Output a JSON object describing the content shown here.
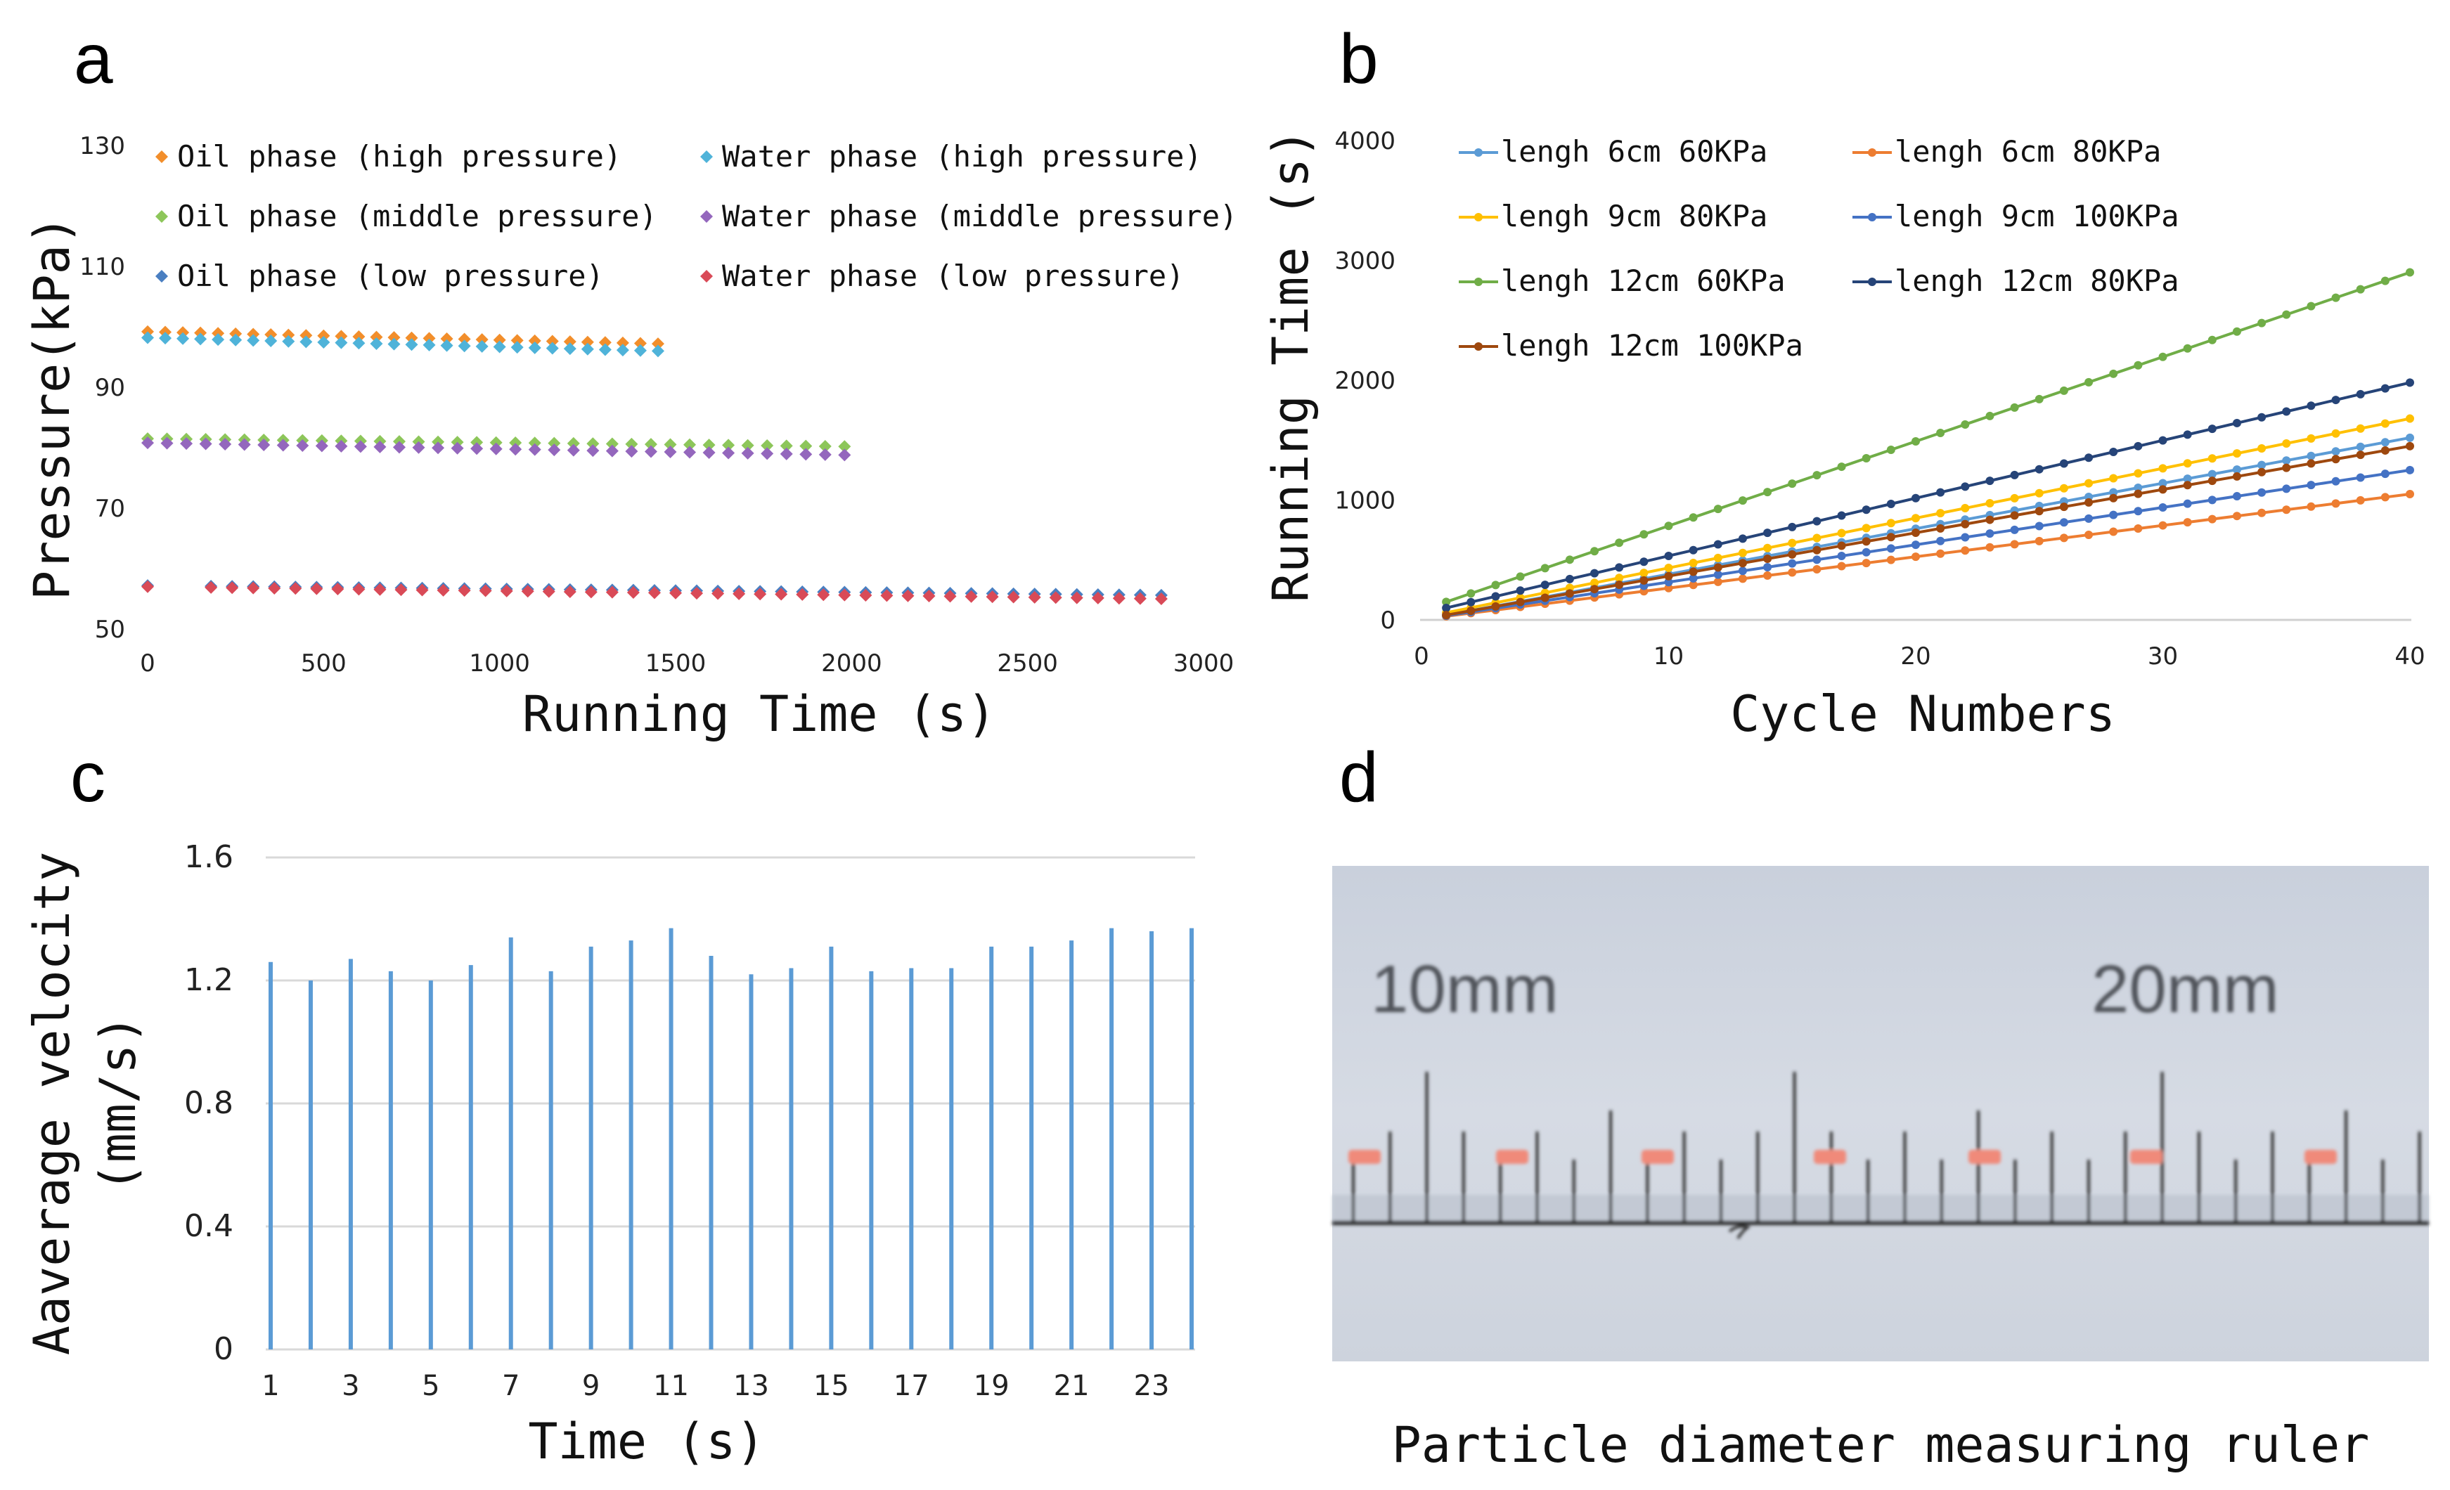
{
  "colors": {
    "oil_high": "#F28E2B",
    "water_high": "#4FB3D9",
    "oil_middle": "#8DC65A",
    "water_middle": "#9467BD",
    "oil_low": "#4A7FC1",
    "water_low": "#D94A57",
    "b_6cm_60": "#5B9BD5",
    "b_6cm_80": "#ED7D31",
    "b_9cm_80": "#FFC000",
    "b_9cm_100": "#4472C4",
    "b_12cm_60": "#70AD47",
    "b_12cm_80": "#264478",
    "b_12cm_100": "#9E480E",
    "bars": "#5B9BD5"
  },
  "chart_data": [
    {
      "panel": "a",
      "type": "scatter",
      "xlabel": "Running Time (s)",
      "ylabel": "Pressure(kPa)",
      "xlim": [
        0,
        3000
      ],
      "ylim": [
        50,
        130
      ],
      "xticks": [
        0,
        500,
        1000,
        1500,
        2000,
        2500,
        3000
      ],
      "yticks": [
        50,
        70,
        90,
        110,
        130
      ],
      "legend_position": "top",
      "series": [
        {
          "name": "Oil phase (high pressure)",
          "color_key": "oil_high",
          "x_start": 0,
          "x_end": 1450,
          "step": 50,
          "y_start": 99.2,
          "y_end": 97.2
        },
        {
          "name": "Water phase (high pressure)",
          "color_key": "water_high",
          "x_start": 0,
          "x_end": 1450,
          "step": 50,
          "y_start": 98.2,
          "y_end": 96.0
        },
        {
          "name": "Oil phase (middle pressure)",
          "color_key": "oil_middle",
          "x_start": 0,
          "x_end": 1980,
          "step": 55,
          "y_start": 81.5,
          "y_end": 80.2
        },
        {
          "name": "Water phase (middle pressure)",
          "color_key": "water_middle",
          "x_start": 0,
          "x_end": 1980,
          "step": 55,
          "y_start": 80.8,
          "y_end": 78.8
        },
        {
          "name": "Oil phase (low pressure)",
          "color_key": "oil_low",
          "x_start": 0,
          "x_end": 2900,
          "step": 60,
          "y_start": 57.2,
          "y_end": 55.6
        },
        {
          "name": "Water phase (low pressure)",
          "color_key": "water_low",
          "x_start": 0,
          "x_end": 2900,
          "step": 60,
          "y_start": 57.0,
          "y_end": 55.0
        }
      ]
    },
    {
      "panel": "b",
      "type": "line",
      "xlabel": "Cycle Numbers",
      "ylabel": "Running Time (s)",
      "xlim": [
        0,
        40
      ],
      "ylim": [
        0,
        4000
      ],
      "xticks": [
        0,
        10,
        20,
        30,
        40
      ],
      "yticks": [
        0,
        1000,
        2000,
        3000,
        4000
      ],
      "legend_position": "top-left",
      "series": [
        {
          "name": "lengh 6cm 60KPa",
          "color_key": "b_6cm_60",
          "x_start": 1,
          "x_end": 40,
          "y_start": 40,
          "y_end": 1520
        },
        {
          "name": "lengh 6cm 80KPa",
          "color_key": "b_6cm_80",
          "x_start": 1,
          "x_end": 40,
          "y_start": 30,
          "y_end": 1050
        },
        {
          "name": "lengh 9cm 80KPa",
          "color_key": "b_9cm_80",
          "x_start": 1,
          "x_end": 40,
          "y_start": 60,
          "y_end": 1680
        },
        {
          "name": "lengh 9cm 100KPa",
          "color_key": "b_9cm_100",
          "x_start": 1,
          "x_end": 40,
          "y_start": 35,
          "y_end": 1250
        },
        {
          "name": "lengh 12cm 60KPa",
          "color_key": "b_12cm_60",
          "x_start": 1,
          "x_end": 40,
          "y_start": 150,
          "y_end": 2900
        },
        {
          "name": "lengh 12cm 80KPa",
          "color_key": "b_12cm_80",
          "x_start": 1,
          "x_end": 40,
          "y_start": 100,
          "y_end": 1980
        },
        {
          "name": "lengh 12cm 100KPa",
          "color_key": "b_12cm_100",
          "x_start": 1,
          "x_end": 40,
          "y_start": 40,
          "y_end": 1450
        }
      ]
    },
    {
      "panel": "c",
      "type": "bar",
      "xlabel": "Time (s)",
      "ylabel": "Aaverage velocity (mm/s)",
      "ylim": [
        0,
        1.6
      ],
      "yticks": [
        0,
        0.4,
        0.8,
        1.2,
        1.6
      ],
      "grid": true,
      "categories": [
        "1",
        "2",
        "3",
        "4",
        "5",
        "6",
        "7",
        "8",
        "9",
        "10",
        "11",
        "12",
        "13",
        "14",
        "15",
        "16",
        "17",
        "18",
        "19",
        "20",
        "21",
        "22",
        "23",
        "24"
      ],
      "tick_labels_shown": [
        "1",
        "3",
        "5",
        "7",
        "9",
        "11",
        "13",
        "15",
        "17",
        "19",
        "21",
        "23"
      ],
      "values": [
        1.26,
        1.2,
        1.27,
        1.23,
        1.2,
        1.25,
        1.34,
        1.23,
        1.31,
        1.33,
        1.37,
        1.28,
        1.22,
        1.24,
        1.31,
        1.23,
        1.24,
        1.24,
        1.31,
        1.31,
        1.33,
        1.37,
        1.36,
        1.37
      ],
      "color_key": "bars"
    }
  ],
  "panel_d": {
    "letter": "d",
    "label_10": "10mm",
    "label_20": "20mm",
    "caption": "Particle diameter measuring ruler"
  },
  "letters": {
    "a": "a",
    "b": "b",
    "c": "c"
  },
  "axis_titles": {
    "a_x": "Running Time (s)",
    "a_y": "Pressure(kPa)",
    "b_x": "Cycle Numbers",
    "b_y": "Running Time (s)",
    "c_x": "Time (s)",
    "c_y1": "Aaverage velocity",
    "c_y2": "(mm/s)"
  }
}
